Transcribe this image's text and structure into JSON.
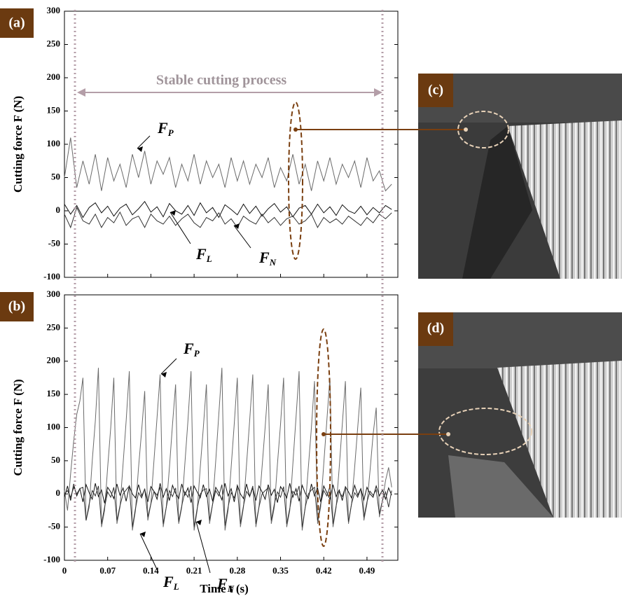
{
  "chart_data": [
    {
      "type": "line",
      "panel_label": "(a)",
      "ylabel": "Cutting force F (N)",
      "annotation": "Stable cutting process",
      "xlim": [
        0,
        0.54
      ],
      "xticks": [
        0,
        0.07,
        0.14,
        0.21,
        0.28,
        0.35,
        0.42,
        0.49
      ],
      "xtick_labels": false,
      "ylim": [
        -100,
        300
      ],
      "yticks": [
        -100,
        -50,
        0,
        50,
        100,
        150,
        200,
        250,
        300
      ],
      "x": [
        0,
        0.01,
        0.02,
        0.03,
        0.04,
        0.05,
        0.06,
        0.07,
        0.08,
        0.09,
        0.1,
        0.11,
        0.12,
        0.13,
        0.14,
        0.15,
        0.16,
        0.17,
        0.18,
        0.19,
        0.2,
        0.21,
        0.22,
        0.23,
        0.24,
        0.25,
        0.26,
        0.27,
        0.28,
        0.29,
        0.3,
        0.31,
        0.32,
        0.33,
        0.34,
        0.35,
        0.36,
        0.37,
        0.38,
        0.39,
        0.4,
        0.41,
        0.42,
        0.43,
        0.44,
        0.45,
        0.46,
        0.47,
        0.48,
        0.49,
        0.5,
        0.51,
        0.52,
        0.53
      ],
      "series": [
        {
          "name": "F",
          "name_sub": "P",
          "color": "#6a6a6a",
          "values": [
            50,
            110,
            35,
            75,
            40,
            85,
            30,
            80,
            45,
            70,
            35,
            85,
            50,
            90,
            40,
            75,
            55,
            80,
            35,
            70,
            45,
            85,
            40,
            75,
            50,
            70,
            35,
            80,
            45,
            75,
            40,
            70,
            50,
            80,
            35,
            65,
            45,
            85,
            40,
            70,
            30,
            75,
            45,
            80,
            40,
            70,
            50,
            75,
            35,
            80,
            45,
            60,
            30,
            40
          ]
        },
        {
          "name": "F",
          "name_sub": "L",
          "color": "#111111",
          "values": [
            10,
            -5,
            8,
            -10,
            5,
            12,
            -3,
            7,
            -8,
            4,
            10,
            -6,
            3,
            14,
            -2,
            6,
            -9,
            11,
            0,
            -5,
            8,
            -7,
            12,
            -3,
            5,
            -10,
            9,
            2,
            -6,
            10,
            -4,
            7,
            -8,
            3,
            11,
            -2,
            6,
            -9,
            4,
            8,
            -5,
            10,
            -3,
            6,
            -7,
            9,
            0,
            -4,
            7,
            -6,
            5,
            -3,
            8,
            2
          ]
        },
        {
          "name": "F",
          "name_sub": "N",
          "color": "#333333",
          "values": [
            -5,
            -25,
            5,
            -15,
            -20,
            -5,
            -25,
            -10,
            -18,
            -2,
            -22,
            -12,
            -8,
            -25,
            -5,
            -15,
            -20,
            -8,
            -22,
            -12,
            -5,
            -18,
            -25,
            -10,
            -15,
            -3,
            -20,
            -12,
            -25,
            -8,
            -15,
            -20,
            -5,
            -18,
            -10,
            -22,
            -12,
            -8,
            -20,
            -15,
            -5,
            -25,
            -10,
            -18,
            -12,
            -20,
            -8,
            -15,
            -22,
            -10,
            -18,
            -5,
            -12,
            -3
          ]
        }
      ]
    },
    {
      "type": "line",
      "panel_label": "(b)",
      "ylabel": "Cutting force F (N)",
      "xlabel": "Time t (s)",
      "xlim": [
        0,
        0.54
      ],
      "xticks": [
        0,
        0.07,
        0.14,
        0.21,
        0.28,
        0.35,
        0.42,
        0.49
      ],
      "xtick_labels": true,
      "ylim": [
        -100,
        300
      ],
      "yticks": [
        -100,
        -50,
        0,
        50,
        100,
        150,
        200,
        250,
        300
      ],
      "x": [
        0,
        0.005,
        0.01,
        0.015,
        0.02,
        0.025,
        0.03,
        0.035,
        0.04,
        0.045,
        0.05,
        0.055,
        0.06,
        0.065,
        0.07,
        0.075,
        0.08,
        0.085,
        0.09,
        0.095,
        0.1,
        0.105,
        0.11,
        0.115,
        0.12,
        0.125,
        0.13,
        0.135,
        0.14,
        0.145,
        0.15,
        0.155,
        0.16,
        0.165,
        0.17,
        0.175,
        0.18,
        0.185,
        0.19,
        0.195,
        0.2,
        0.205,
        0.21,
        0.215,
        0.22,
        0.225,
        0.23,
        0.235,
        0.24,
        0.245,
        0.25,
        0.255,
        0.26,
        0.265,
        0.27,
        0.275,
        0.28,
        0.285,
        0.29,
        0.295,
        0.3,
        0.305,
        0.31,
        0.315,
        0.32,
        0.325,
        0.33,
        0.335,
        0.34,
        0.345,
        0.35,
        0.355,
        0.36,
        0.365,
        0.37,
        0.375,
        0.38,
        0.385,
        0.39,
        0.395,
        0.4,
        0.405,
        0.41,
        0.415,
        0.42,
        0.425,
        0.43,
        0.435,
        0.44,
        0.445,
        0.45,
        0.455,
        0.46,
        0.465,
        0.47,
        0.475,
        0.48,
        0.485,
        0.49,
        0.495,
        0.5,
        0.505,
        0.51,
        0.515,
        0.52,
        0.525,
        0.53
      ],
      "series": [
        {
          "name": "F",
          "name_sub": "P",
          "color": "#6a6a6a",
          "values": [
            5,
            -25,
            30,
            80,
            120,
            140,
            175,
            -40,
            -20,
            50,
            110,
            190,
            -50,
            -25,
            40,
            100,
            175,
            -45,
            -20,
            45,
            110,
            185,
            -55,
            -25,
            40,
            95,
            155,
            -40,
            -15,
            50,
            115,
            180,
            -50,
            -20,
            40,
            105,
            165,
            -45,
            -20,
            45,
            110,
            185,
            -55,
            -25,
            40,
            100,
            165,
            -45,
            -15,
            50,
            120,
            190,
            -55,
            -25,
            40,
            105,
            175,
            -50,
            -20,
            45,
            110,
            180,
            -50,
            -20,
            40,
            100,
            165,
            -45,
            -20,
            45,
            105,
            175,
            -50,
            -25,
            45,
            115,
            185,
            -55,
            -20,
            40,
            100,
            170,
            -45,
            -20,
            45,
            110,
            175,
            -50,
            -20,
            40,
            105,
            170,
            -45,
            -15,
            40,
            100,
            160,
            -40,
            -15,
            35,
            90,
            130,
            -35,
            -10,
            20,
            40,
            10
          ]
        },
        {
          "name": "F",
          "name_sub": "L",
          "color": "#111111",
          "values": [
            -5,
            12,
            -10,
            15,
            -3,
            8,
            -12,
            14,
            2,
            -8,
            16,
            -4,
            6,
            -14,
            10,
            3,
            -7,
            15,
            -2,
            9,
            -11,
            12,
            0,
            -6,
            14,
            -3,
            7,
            -12,
            11,
            4,
            -8,
            16,
            -5,
            8,
            -10,
            13,
            1,
            -7,
            15,
            -2,
            9,
            -13,
            12,
            3,
            -6,
            14,
            -4,
            7,
            -11,
            10,
            2,
            -9,
            16,
            -3,
            8,
            -12,
            13,
            0,
            -7,
            15,
            -4,
            9,
            -10,
            12,
            3,
            -8,
            14,
            -2,
            7,
            -13,
            11,
            4,
            -6,
            16,
            -5,
            8,
            -11,
            13,
            1,
            -7,
            15,
            -3,
            9,
            -12,
            12,
            2,
            -8,
            14,
            -4,
            6,
            -10,
            11,
            3,
            -6,
            13,
            -2,
            8,
            -9,
            10,
            0,
            -5,
            12,
            -3,
            6,
            -8,
            9,
            -2
          ]
        },
        {
          "name": "F",
          "name_sub": "N",
          "color": "#333333",
          "values": [
            0,
            5,
            -5,
            10,
            0,
            8,
            10,
            -40,
            -15,
            5,
            -3,
            12,
            -45,
            -20,
            3,
            -5,
            10,
            -40,
            -18,
            0,
            6,
            12,
            -50,
            -22,
            2,
            -6,
            8,
            -35,
            -15,
            4,
            -2,
            10,
            -45,
            -20,
            5,
            -4,
            9,
            -42,
            -18,
            3,
            -5,
            12,
            -50,
            -22,
            0,
            6,
            8,
            -40,
            -15,
            5,
            -3,
            14,
            -48,
            -20,
            2,
            -6,
            10,
            -45,
            -18,
            4,
            -4,
            12,
            -45,
            -20,
            0,
            5,
            9,
            -40,
            -15,
            3,
            -5,
            11,
            -45,
            -22,
            4,
            -2,
            12,
            -50,
            -20,
            0,
            6,
            10,
            -40,
            -15,
            5,
            -3,
            11,
            -45,
            -18,
            3,
            -4,
            10,
            -42,
            -15,
            2,
            -5,
            8,
            -35,
            -12,
            4,
            -2,
            6,
            -30,
            -10,
            3,
            -20,
            5
          ]
        }
      ]
    }
  ],
  "images": [
    {
      "label": "(c)"
    },
    {
      "label": "(d)"
    }
  ]
}
